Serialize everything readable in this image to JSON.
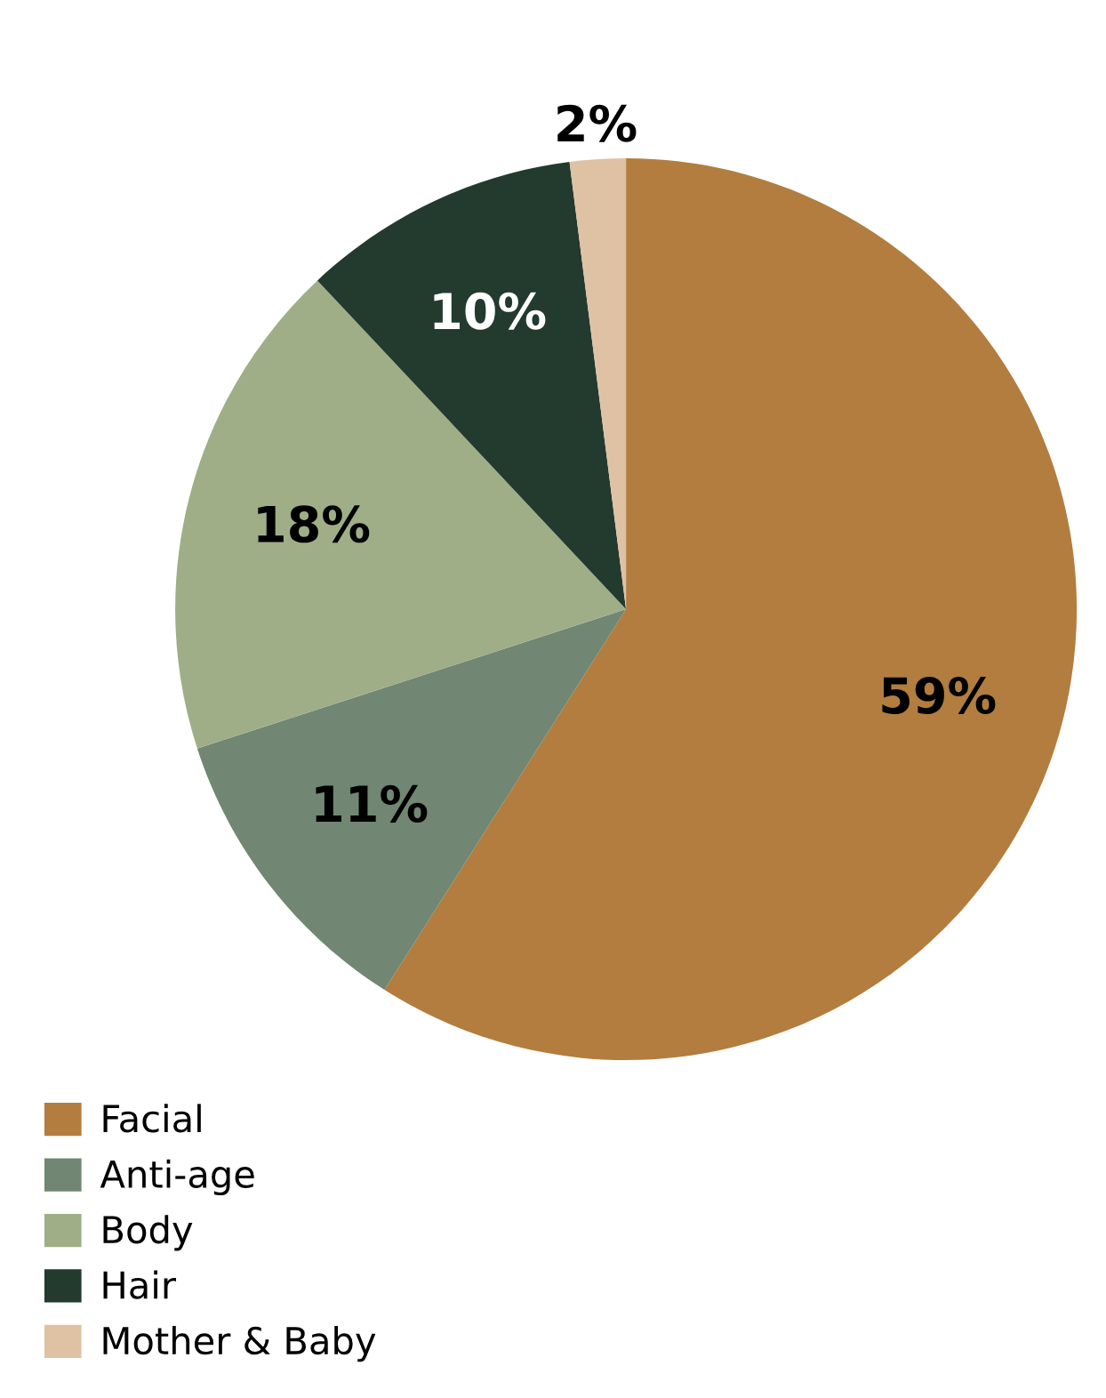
{
  "chart_data": {
    "type": "pie",
    "categories": [
      "Facial",
      "Anti-age",
      "Body",
      "Hair",
      "Mother & Baby"
    ],
    "values": [
      59,
      11,
      18,
      10,
      2
    ],
    "colors": [
      "#b27d3e",
      "#718673",
      "#9fae86",
      "#233a2e",
      "#dfc2a3"
    ],
    "value_labels": [
      "59%",
      "11%",
      "18%",
      "10%",
      "2%"
    ],
    "legend": "bottom left"
  }
}
